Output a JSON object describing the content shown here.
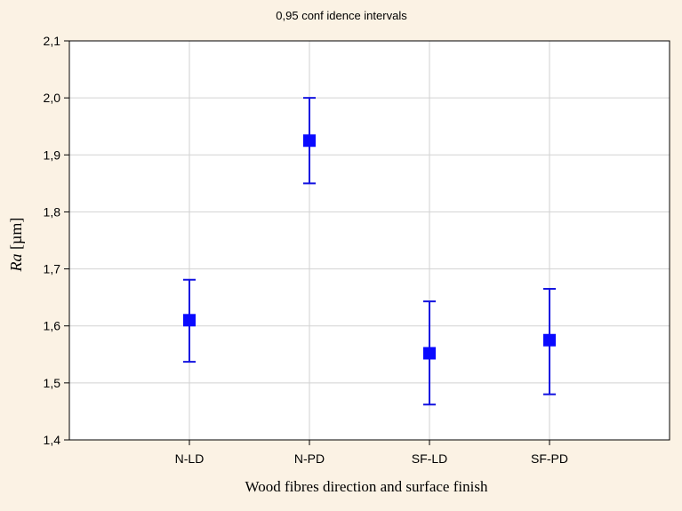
{
  "chart_data": {
    "type": "scatter",
    "subtitle": "0,95 conf idence intervals",
    "xlabel": "Wood fibres direction and surface finish",
    "ylabel_italic": "Ra",
    "ylabel_unit": " [µm]",
    "categories": [
      "N-LD",
      "N-PD",
      "SF-LD",
      "SF-PD"
    ],
    "series": [
      {
        "means": [
          1.61,
          1.925,
          1.552,
          1.575
        ],
        "lower": [
          1.537,
          1.85,
          1.462,
          1.48
        ],
        "upper": [
          1.681,
          2.0,
          1.643,
          1.665
        ]
      }
    ],
    "ylim": [
      1.4,
      2.1
    ],
    "yticks": [
      "1,4",
      "1,5",
      "1,6",
      "1,7",
      "1,8",
      "1,9",
      "2,0",
      "2,1"
    ],
    "grid": true,
    "colors": {
      "marker": "#0a0aff",
      "errorbar": "#1212e0",
      "grid": "#d2d2d2",
      "background": "#fbf2e4",
      "plot_area": "#ffffff"
    }
  }
}
